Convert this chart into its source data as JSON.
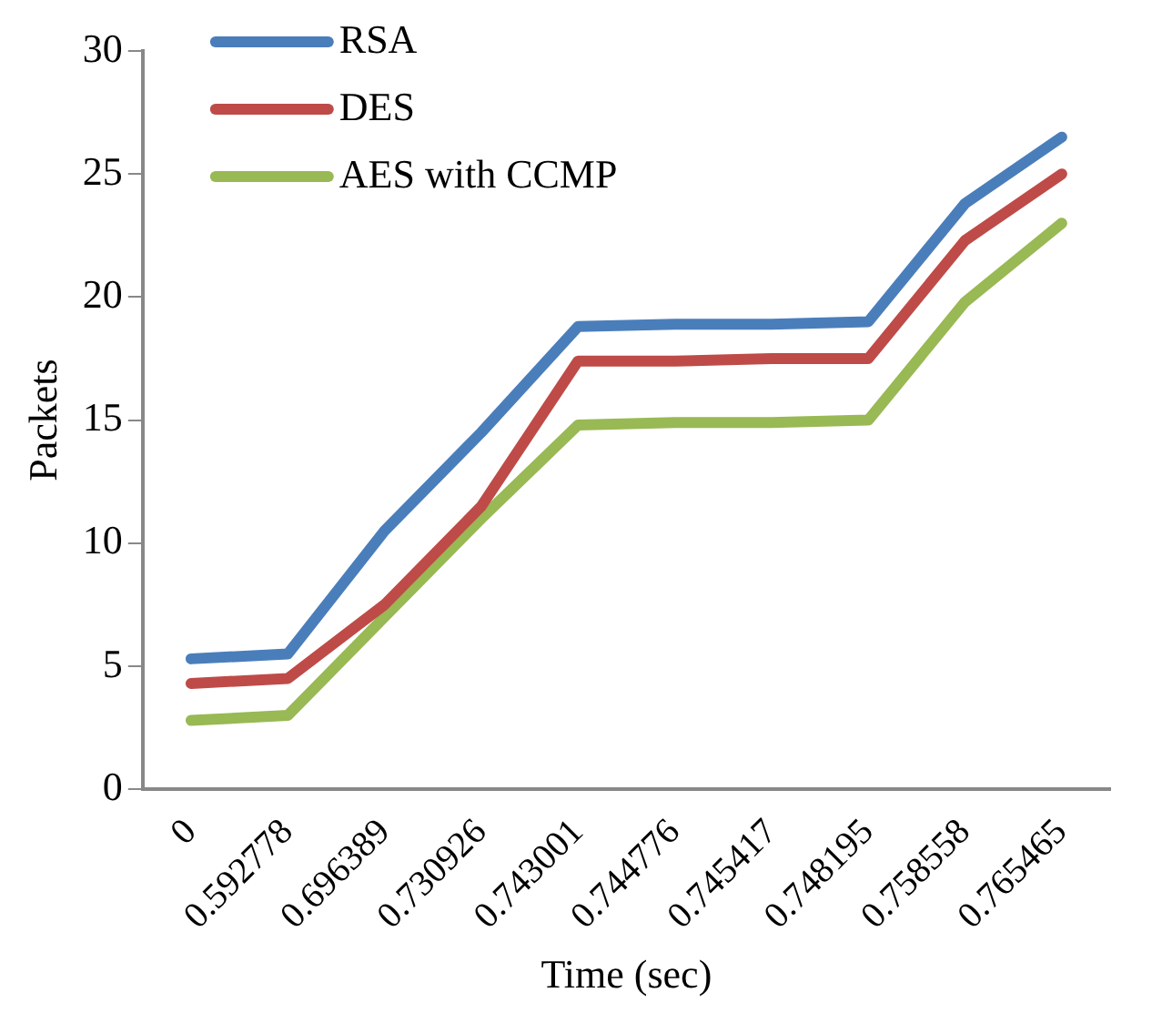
{
  "chart_data": {
    "type": "line",
    "xlabel": "Time (sec)",
    "ylabel": "Packets",
    "categories": [
      "0",
      "0.592778",
      "0.696389",
      "0.730926",
      "0.743001",
      "0.744776",
      "0.745417",
      "0.748195",
      "0.758558",
      "0.765465"
    ],
    "series": [
      {
        "name": "RSA",
        "color": "#4a7ebb",
        "values": [
          5.3,
          5.5,
          10.5,
          14.5,
          18.8,
          18.9,
          18.9,
          19.0,
          23.8,
          26.5
        ]
      },
      {
        "name": "DES",
        "color": "#be4b48",
        "values": [
          4.3,
          4.5,
          7.5,
          11.5,
          17.4,
          17.4,
          17.5,
          17.5,
          22.3,
          25.0
        ]
      },
      {
        "name": "AES with CCMP",
        "color": "#98b954",
        "values": [
          2.8,
          3.0,
          7.0,
          11.0,
          14.8,
          14.9,
          14.9,
          15.0,
          19.8,
          23.0
        ]
      }
    ],
    "ylim": [
      0,
      30
    ],
    "yticks": [
      0,
      5,
      10,
      15,
      20,
      25,
      30
    ],
    "grid": false,
    "legend": "top left",
    "marker": "none",
    "line_style": "solid"
  }
}
